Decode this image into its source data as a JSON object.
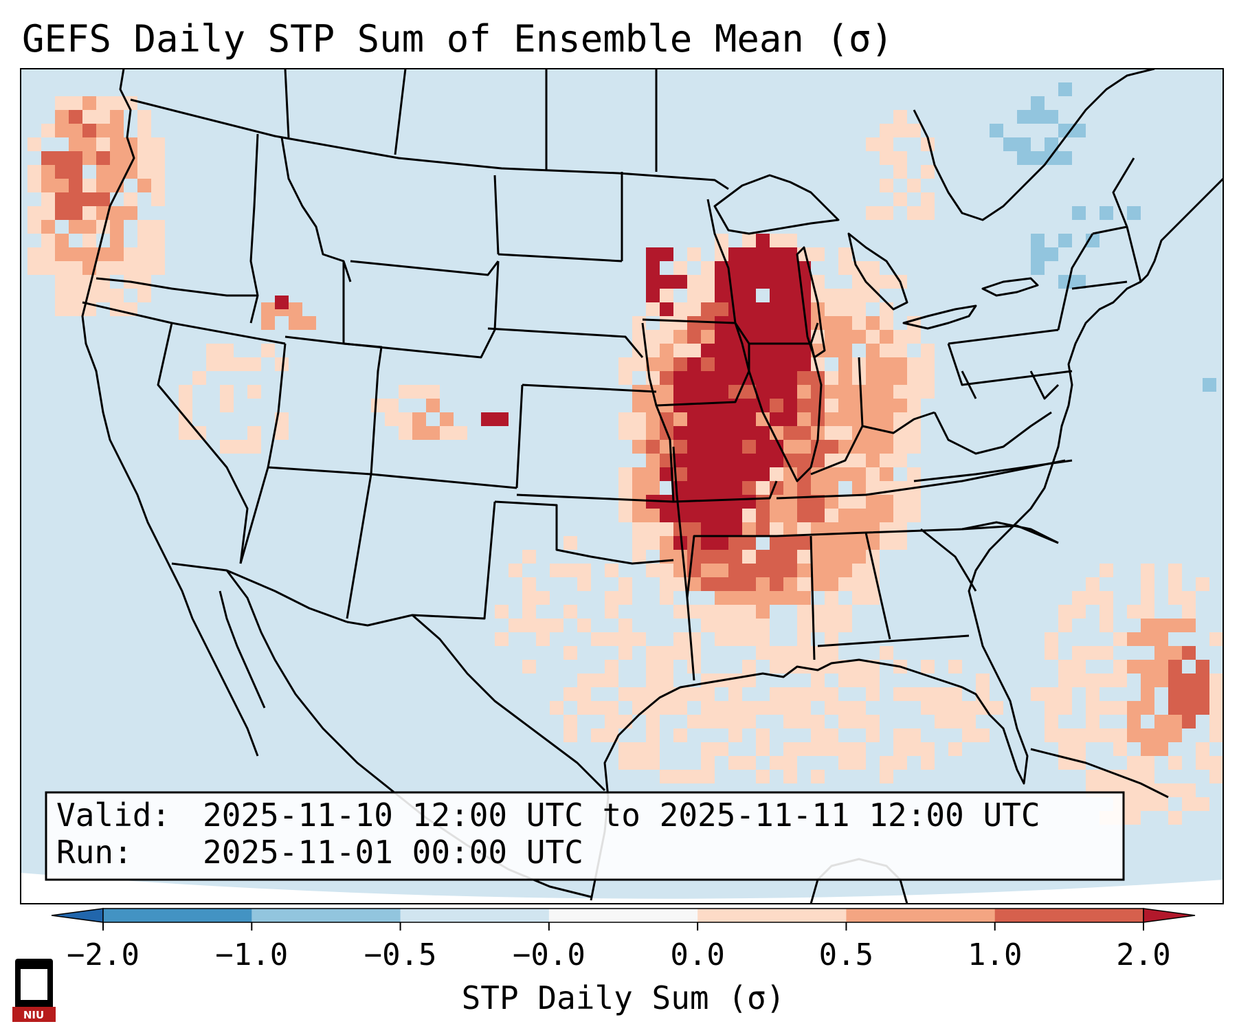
{
  "title": "GEFS Daily STP Sum of Ensemble Mean (σ)",
  "info_box": {
    "valid_label": "Valid:",
    "valid_value": "2025-11-10 12:00 UTC to 2025-11-11 12:00 UTC",
    "run_label": "Run:",
    "run_value": "2025-11-01 00:00 UTC"
  },
  "colorbar": {
    "label": "STP Daily Sum (σ)",
    "ticks": [
      "−2.0",
      "−1.0",
      "−0.5",
      "−0.0",
      "0.0",
      "0.5",
      "1.0",
      "2.0"
    ],
    "bins": [
      {
        "from": -2.0,
        "to": -1.0,
        "color": "#4393c3"
      },
      {
        "from": -1.0,
        "to": -0.5,
        "color": "#92c5de"
      },
      {
        "from": -0.5,
        "to": -0.0,
        "color": "#d1e5f0"
      },
      {
        "from": -0.0,
        "to": 0.0,
        "color": "#f7f7f7"
      },
      {
        "from": 0.0,
        "to": 0.5,
        "color": "#fddbc7"
      },
      {
        "from": 0.5,
        "to": 1.0,
        "color": "#f4a582"
      },
      {
        "from": 1.0,
        "to": 2.0,
        "color": "#d6604d"
      }
    ],
    "under_color": "#2166ac",
    "over_color": "#b2182b",
    "extend": "both"
  },
  "map": {
    "region": "CONUS",
    "background_color": "#d1e5f0",
    "outside_projection_color": "#ffffff"
  },
  "logo": {
    "text": "NIU",
    "background": "#b71c1c"
  }
}
